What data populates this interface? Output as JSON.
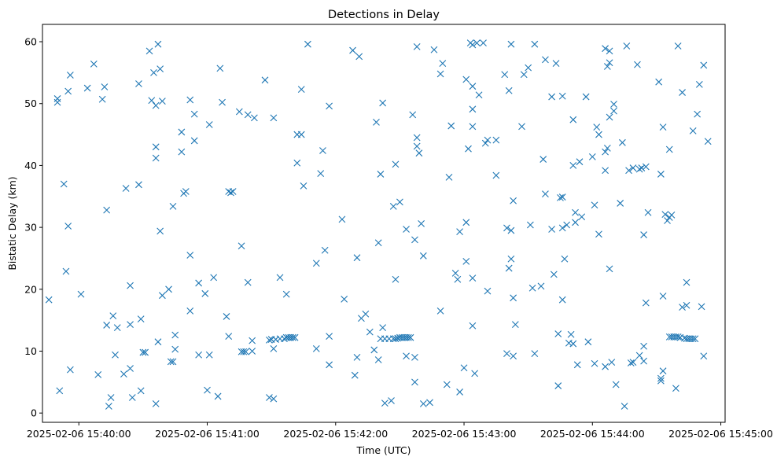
{
  "chart_data": {
    "type": "scatter",
    "title": "Detections in Delay",
    "xlabel": "Time (UTC)",
    "ylabel": "Bistatic Delay (km)",
    "marker": "x",
    "marker_color": "#1f77b4",
    "x_unit": "seconds after 2025-02-06 15:40:00",
    "xlim": [
      -17,
      302
    ],
    "ylim": [
      -1.5,
      62.8
    ],
    "x_ticks": [
      0,
      60,
      120,
      180,
      240,
      300
    ],
    "x_tick_labels": [
      "2025-02-06 15:40:00",
      "2025-02-06 15:41:00",
      "2025-02-06 15:42:00",
      "2025-02-06 15:43:00",
      "2025-02-06 15:44:00",
      "2025-02-06 15:45:00"
    ],
    "y_ticks": [
      0,
      10,
      20,
      30,
      40,
      50,
      60
    ],
    "y_tick_labels": [
      "0",
      "10",
      "20",
      "30",
      "40",
      "50",
      "60"
    ],
    "points": [
      [
        -14,
        18.3
      ],
      [
        -10,
        50.8
      ],
      [
        -10,
        50.2
      ],
      [
        -9,
        3.6
      ],
      [
        -7,
        37
      ],
      [
        -6,
        22.9
      ],
      [
        -5,
        52
      ],
      [
        -5,
        30.2
      ],
      [
        -4,
        54.6
      ],
      [
        -4,
        7
      ],
      [
        1,
        19.2
      ],
      [
        4,
        52.5
      ],
      [
        7,
        56.4
      ],
      [
        9,
        6.2
      ],
      [
        11,
        50.7
      ],
      [
        12,
        52.7
      ],
      [
        13,
        32.8
      ],
      [
        13,
        14.2
      ],
      [
        14,
        1.1
      ],
      [
        15,
        2.5
      ],
      [
        16,
        15.7
      ],
      [
        17,
        9.4
      ],
      [
        18,
        13.8
      ],
      [
        21,
        6.3
      ],
      [
        22,
        36.3
      ],
      [
        24,
        7.2
      ],
      [
        24,
        14.3
      ],
      [
        24,
        20.6
      ],
      [
        25,
        2.5
      ],
      [
        28,
        53.2
      ],
      [
        28,
        36.9
      ],
      [
        29,
        15.2
      ],
      [
        29,
        3.6
      ],
      [
        30,
        9.8
      ],
      [
        31,
        9.8
      ],
      [
        33,
        58.5
      ],
      [
        34,
        50.5
      ],
      [
        35,
        55
      ],
      [
        36,
        49.7
      ],
      [
        36,
        43
      ],
      [
        36,
        41.2
      ],
      [
        36,
        1.5
      ],
      [
        37,
        11.5
      ],
      [
        37,
        59.6
      ],
      [
        38,
        55.6
      ],
      [
        38,
        29.4
      ],
      [
        39,
        50.4
      ],
      [
        39,
        19
      ],
      [
        42,
        20
      ],
      [
        43,
        8.3
      ],
      [
        44,
        8.3
      ],
      [
        44,
        33.4
      ],
      [
        45,
        12.6
      ],
      [
        45,
        10.3
      ],
      [
        48,
        42.2
      ],
      [
        48,
        45.4
      ],
      [
        49,
        35.5
      ],
      [
        50,
        35.8
      ],
      [
        52,
        50.6
      ],
      [
        52,
        25.5
      ],
      [
        52,
        16.5
      ],
      [
        54,
        44
      ],
      [
        54,
        48.3
      ],
      [
        56,
        21
      ],
      [
        56,
        9.4
      ],
      [
        59,
        19.3
      ],
      [
        60,
        3.7
      ],
      [
        61,
        46.6
      ],
      [
        61,
        9.4
      ],
      [
        63,
        21.9
      ],
      [
        65,
        2.7
      ],
      [
        66,
        55.7
      ],
      [
        67,
        50.2
      ],
      [
        69,
        15.6
      ],
      [
        70,
        12.4
      ],
      [
        70,
        35.8
      ],
      [
        71,
        35.6
      ],
      [
        72,
        35.8
      ],
      [
        75,
        48.7
      ],
      [
        76,
        27
      ],
      [
        76,
        9.9
      ],
      [
        77,
        9.9
      ],
      [
        78,
        9.9
      ],
      [
        79,
        21.1
      ],
      [
        79,
        48.2
      ],
      [
        81,
        11.7
      ],
      [
        81,
        10
      ],
      [
        82,
        47.7
      ],
      [
        87,
        53.8
      ],
      [
        89,
        11.8
      ],
      [
        89,
        2.5
      ],
      [
        90,
        11.9
      ],
      [
        91,
        47.7
      ],
      [
        91,
        10.4
      ],
      [
        91,
        2.3
      ],
      [
        92,
        11.9
      ],
      [
        94,
        21.9
      ],
      [
        94,
        12
      ],
      [
        96,
        12
      ],
      [
        97,
        19.2
      ],
      [
        97,
        12.2
      ],
      [
        98,
        12.2
      ],
      [
        99,
        12.2
      ],
      [
        100,
        12.2
      ],
      [
        101,
        12.2
      ],
      [
        102,
        40.4
      ],
      [
        102,
        45
      ],
      [
        104,
        45
      ],
      [
        104,
        52.3
      ],
      [
        105,
        36.7
      ],
      [
        107,
        59.6
      ],
      [
        111,
        24.2
      ],
      [
        111,
        10.4
      ],
      [
        113,
        38.7
      ],
      [
        114,
        42.4
      ],
      [
        115,
        26.3
      ],
      [
        117,
        12.4
      ],
      [
        117,
        49.6
      ],
      [
        117,
        7.8
      ],
      [
        123,
        31.3
      ],
      [
        124,
        18.4
      ],
      [
        128,
        58.6
      ],
      [
        129,
        6.1
      ],
      [
        130,
        9
      ],
      [
        130,
        25.1
      ],
      [
        131,
        57.6
      ],
      [
        132,
        15.3
      ],
      [
        134,
        16
      ],
      [
        136,
        13.1
      ],
      [
        138,
        10.2
      ],
      [
        139,
        47
      ],
      [
        140,
        27.5
      ],
      [
        140,
        8.6
      ],
      [
        141,
        38.6
      ],
      [
        141,
        12
      ],
      [
        142,
        50.1
      ],
      [
        142,
        13.8
      ],
      [
        143,
        1.6
      ],
      [
        143,
        12
      ],
      [
        145,
        12
      ],
      [
        146,
        2
      ],
      [
        147,
        12
      ],
      [
        147,
        33.4
      ],
      [
        148,
        40.2
      ],
      [
        148,
        12
      ],
      [
        148,
        21.6
      ],
      [
        149,
        12.1
      ],
      [
        150,
        12.2
      ],
      [
        150,
        34.1
      ],
      [
        151,
        12.2
      ],
      [
        152,
        12.2
      ],
      [
        153,
        9.2
      ],
      [
        153,
        29.7
      ],
      [
        153,
        12.2
      ],
      [
        154,
        12.2
      ],
      [
        155,
        12.2
      ],
      [
        156,
        48.2
      ],
      [
        157,
        28
      ],
      [
        157,
        5
      ],
      [
        157,
        9
      ],
      [
        158,
        59.2
      ],
      [
        158,
        44.5
      ],
      [
        158,
        43.1
      ],
      [
        159,
        42
      ],
      [
        160,
        30.6
      ],
      [
        161,
        25.4
      ],
      [
        161,
        1.5
      ],
      [
        164,
        1.7
      ],
      [
        166,
        58.7
      ],
      [
        169,
        54.8
      ],
      [
        170,
        56.5
      ],
      [
        169,
        16.5
      ],
      [
        172,
        4.6
      ],
      [
        173,
        38.1
      ],
      [
        174,
        46.4
      ],
      [
        176,
        22.6
      ],
      [
        177,
        21.6
      ],
      [
        178,
        29.3
      ],
      [
        178,
        3.4
      ],
      [
        180,
        7.3
      ],
      [
        181,
        24.5
      ],
      [
        181,
        30.8
      ],
      [
        181,
        53.9
      ],
      [
        182,
        42.7
      ],
      [
        183,
        59.8
      ],
      [
        184,
        59.5
      ],
      [
        184,
        52.8
      ],
      [
        184,
        49.1
      ],
      [
        184,
        46.3
      ],
      [
        184,
        21.8
      ],
      [
        184,
        14.1
      ],
      [
        185,
        6.4
      ],
      [
        186,
        59.8
      ],
      [
        187,
        51.4
      ],
      [
        189,
        59.8
      ],
      [
        190,
        43.6
      ],
      [
        191,
        44.1
      ],
      [
        191,
        19.7
      ],
      [
        195,
        44.1
      ],
      [
        195,
        38.4
      ],
      [
        199,
        54.7
      ],
      [
        200,
        29.9
      ],
      [
        200,
        9.6
      ],
      [
        201,
        23.4
      ],
      [
        201,
        52.1
      ],
      [
        202,
        24.9
      ],
      [
        202,
        29.5
      ],
      [
        202,
        59.6
      ],
      [
        203,
        34.3
      ],
      [
        203,
        18.6
      ],
      [
        203,
        9.2
      ],
      [
        204,
        14.3
      ],
      [
        207,
        46.3
      ],
      [
        208,
        54.7
      ],
      [
        210,
        55.8
      ],
      [
        211,
        30.4
      ],
      [
        212,
        20.2
      ],
      [
        213,
        59.6
      ],
      [
        213,
        9.6
      ],
      [
        216,
        20.5
      ],
      [
        217,
        41
      ],
      [
        218,
        57.1
      ],
      [
        218,
        35.4
      ],
      [
        221,
        29.7
      ],
      [
        221,
        51.1
      ],
      [
        222,
        22.4
      ],
      [
        223,
        56.5
      ],
      [
        224,
        4.4
      ],
      [
        224,
        12.8
      ],
      [
        225,
        34.8
      ],
      [
        226,
        51.2
      ],
      [
        226,
        34.9
      ],
      [
        226,
        29.9
      ],
      [
        226,
        18.3
      ],
      [
        227,
        24.9
      ],
      [
        228,
        30.4
      ],
      [
        229,
        11.3
      ],
      [
        230,
        12.7
      ],
      [
        231,
        11.2
      ],
      [
        231,
        40
      ],
      [
        231,
        47.4
      ],
      [
        232,
        30.8
      ],
      [
        232,
        32.4
      ],
      [
        233,
        7.8
      ],
      [
        234,
        40.6
      ],
      [
        235,
        31.7
      ],
      [
        237,
        51.1
      ],
      [
        238,
        11.5
      ],
      [
        240,
        41.4
      ],
      [
        241,
        8
      ],
      [
        241,
        33.6
      ],
      [
        242,
        46.2
      ],
      [
        243,
        28.9
      ],
      [
        243,
        45
      ],
      [
        246,
        58.9
      ],
      [
        246,
        39.2
      ],
      [
        246,
        42.2
      ],
      [
        246,
        7.5
      ],
      [
        247,
        42.8
      ],
      [
        247,
        56
      ],
      [
        248,
        47.8
      ],
      [
        248,
        23.3
      ],
      [
        248,
        56.6
      ],
      [
        248,
        58.5
      ],
      [
        249,
        8.2
      ],
      [
        250,
        48.8
      ],
      [
        250,
        49.9
      ],
      [
        251,
        4.6
      ],
      [
        253,
        33.9
      ],
      [
        254,
        43.7
      ],
      [
        255,
        1.1
      ],
      [
        256,
        59.3
      ],
      [
        257,
        39.2
      ],
      [
        258,
        8.1
      ],
      [
        259,
        8.2
      ],
      [
        259,
        39.6
      ],
      [
        261,
        56.3
      ],
      [
        262,
        39.4
      ],
      [
        262,
        9.3
      ],
      [
        263,
        39.6
      ],
      [
        264,
        28.8
      ],
      [
        264,
        10.8
      ],
      [
        264,
        8.4
      ],
      [
        265,
        39.8
      ],
      [
        265,
        17.8
      ],
      [
        266,
        32.4
      ],
      [
        271,
        53.5
      ],
      [
        272,
        5.6
      ],
      [
        272,
        5.2
      ],
      [
        272,
        38.6
      ],
      [
        273,
        6.8
      ],
      [
        273,
        18.9
      ],
      [
        273,
        46.2
      ],
      [
        274,
        32.1
      ],
      [
        275,
        31.1
      ],
      [
        276,
        12.3
      ],
      [
        276,
        31.6
      ],
      [
        276,
        42.6
      ],
      [
        277,
        12.3
      ],
      [
        277,
        32
      ],
      [
        278,
        12.3
      ],
      [
        279,
        12.3
      ],
      [
        279,
        4
      ],
      [
        280,
        12.3
      ],
      [
        280,
        59.3
      ],
      [
        281,
        12.2
      ],
      [
        282,
        51.8
      ],
      [
        282,
        17.1
      ],
      [
        283,
        12.1
      ],
      [
        284,
        12
      ],
      [
        284,
        17.4
      ],
      [
        284,
        21.1
      ],
      [
        285,
        12
      ],
      [
        286,
        12
      ],
      [
        287,
        12
      ],
      [
        287,
        45.6
      ],
      [
        288,
        12
      ],
      [
        289,
        48.3
      ],
      [
        290,
        53.1
      ],
      [
        291,
        17.2
      ],
      [
        292,
        56.2
      ],
      [
        292,
        9.2
      ],
      [
        294,
        43.9
      ]
    ]
  }
}
